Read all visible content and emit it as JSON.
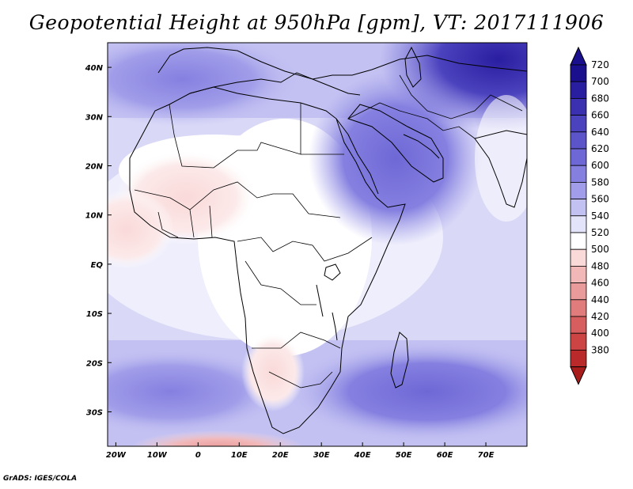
{
  "title": "Geopotential Height at 950hPa [gpm], VT: 2017111906",
  "credit": "GrADS: IGES/COLA",
  "map": {
    "lon_range": [
      -22,
      80
    ],
    "lat_range": [
      -37,
      45
    ],
    "x_ticks": [
      {
        "lon": -20,
        "label": "20W"
      },
      {
        "lon": -10,
        "label": "10W"
      },
      {
        "lon": 0,
        "label": "0"
      },
      {
        "lon": 10,
        "label": "10E"
      },
      {
        "lon": 20,
        "label": "20E"
      },
      {
        "lon": 30,
        "label": "30E"
      },
      {
        "lon": 40,
        "label": "40E"
      },
      {
        "lon": 50,
        "label": "50E"
      },
      {
        "lon": 60,
        "label": "60E"
      },
      {
        "lon": 70,
        "label": "70E"
      }
    ],
    "y_ticks": [
      {
        "lat": 40,
        "label": "40N"
      },
      {
        "lat": 30,
        "label": "30N"
      },
      {
        "lat": 20,
        "label": "20N"
      },
      {
        "lat": 10,
        "label": "10N"
      },
      {
        "lat": 0,
        "label": "EQ"
      },
      {
        "lat": -10,
        "label": "10S"
      },
      {
        "lat": -20,
        "label": "20S"
      },
      {
        "lat": -30,
        "label": "30S"
      }
    ]
  },
  "colorbar": {
    "levels": [
      {
        "label": "720",
        "color": "#1a0f8c"
      },
      {
        "label": "700",
        "color": "#2a1ea0"
      },
      {
        "label": "680",
        "color": "#3a30b0"
      },
      {
        "label": "660",
        "color": "#4b42be"
      },
      {
        "label": "640",
        "color": "#5c55ca"
      },
      {
        "label": "620",
        "color": "#6e68d6"
      },
      {
        "label": "600",
        "color": "#8580e0"
      },
      {
        "label": "580",
        "color": "#a19de9"
      },
      {
        "label": "560",
        "color": "#c3c1f2"
      },
      {
        "label": "540",
        "color": "#e3e3fa"
      },
      {
        "label": "520",
        "color": "#ffffff"
      },
      {
        "label": "500",
        "color": "#fad9d9"
      },
      {
        "label": "480",
        "color": "#f2b7b7"
      },
      {
        "label": "460",
        "color": "#e99a9a"
      },
      {
        "label": "440",
        "color": "#e07c7c"
      },
      {
        "label": "420",
        "color": "#d65e5e"
      },
      {
        "label": "400",
        "color": "#cc4444"
      },
      {
        "label": "380",
        "color": "#bb2a2a"
      }
    ],
    "top_color": "#1a0f8c",
    "bottom_color": "#a81c1c"
  },
  "fields": [
    {
      "name": "south-atlantic-low",
      "lon": 0,
      "lat": -30,
      "level": "580"
    },
    {
      "name": "south-indian-low",
      "lon": 50,
      "lat": -28,
      "level": "600"
    },
    {
      "name": "arabia-low",
      "lon": 48,
      "lat": 22,
      "level": "620"
    },
    {
      "name": "asia-low",
      "lon": 72,
      "lat": 42,
      "level": "700"
    },
    {
      "name": "mediterranean-low",
      "lon": 15,
      "lat": 40,
      "level": "600"
    },
    {
      "name": "west-africa-high",
      "lon": -10,
      "lat": 12,
      "level": "500"
    },
    {
      "name": "antarctic-high",
      "lon": 5,
      "lat": -36,
      "level": "480"
    }
  ]
}
